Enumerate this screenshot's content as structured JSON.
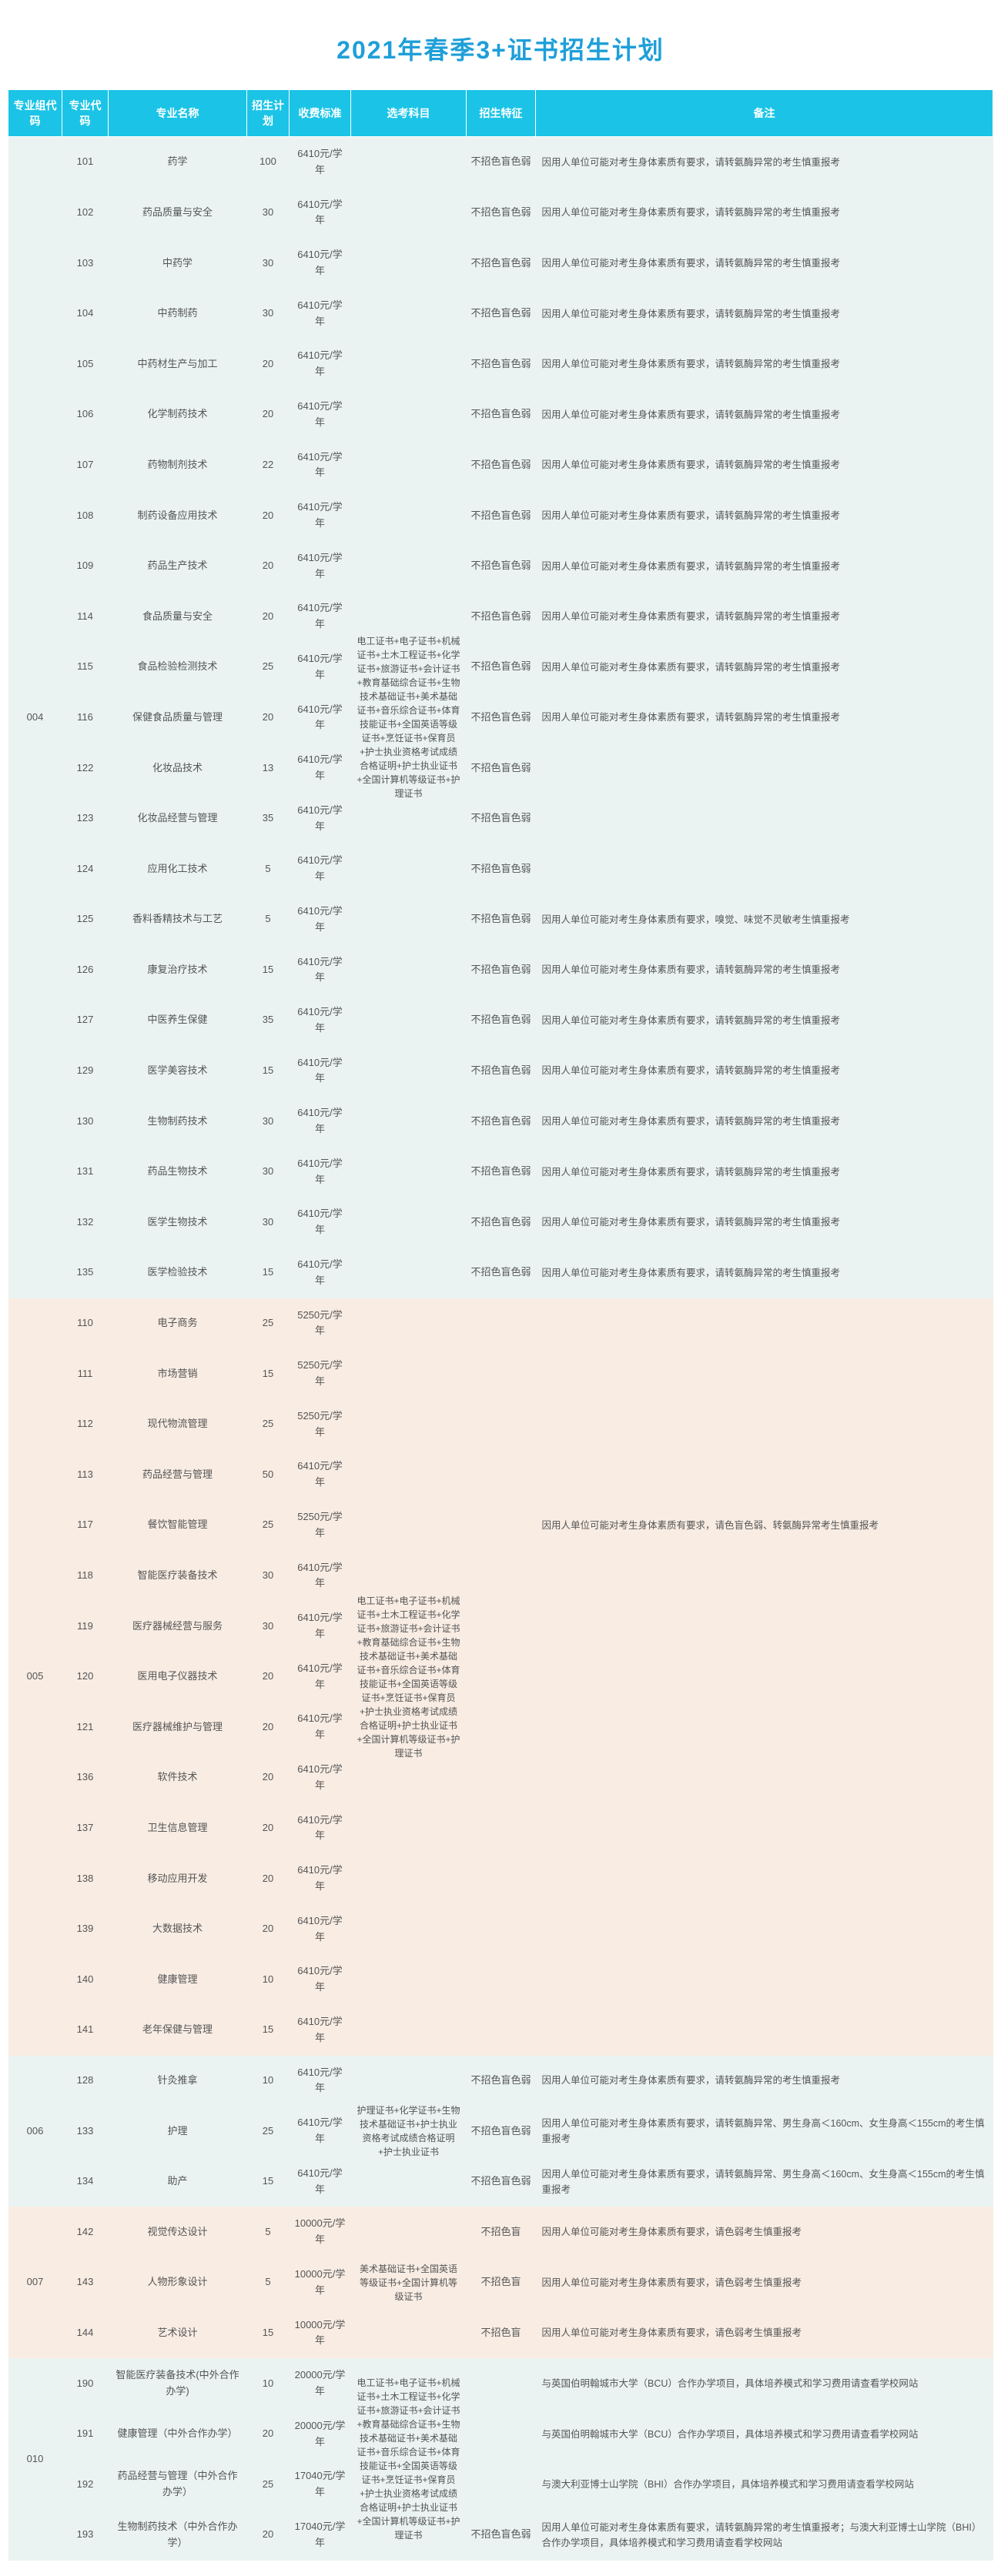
{
  "title": "2021年春季3+证书招生计划",
  "columns": [
    "专业组代码",
    "专业代码",
    "专业名称",
    "招生计划",
    "收费标准",
    "选考科目",
    "招生特征",
    "备注"
  ],
  "subject_cert_long": "电工证书+电子证书+机械证书+土木工程证书+化学证书+旅游证书+会计证书+教育基础综合证书+生物技术基础证书+美术基础证书+音乐综合证书+体育技能证书+全国英语等级证书+烹饪证书+保育员+护士执业资格考试成绩合格证明+护士执业证书+全国计算机等级证书+护理证书",
  "subject_cert_nurse": "护理证书+化学证书+生物技术基础证书+护士执业资格考试成绩合格证明+护士执业证书",
  "subject_cert_art": "美术基础证书+全国英语等级证书+全国计算机等级证书",
  "remark_std": "因用人单位可能对考生身体素质有要求，请转氨酶异常的考生慎重报考",
  "remark_smell": "因用人单位可能对考生身体素质有要求，嗅觉、味觉不灵敏考生慎重报考",
  "remark_005_117": "因用人单位可能对考生身体素质有要求，请色盲色弱、转氨酶异常考生慎重报考",
  "remark_height": "因用人单位可能对考生身体素质有要求，请转氨酶异常、男生身高＜160cm、女生身高＜155cm的考生慎重报考",
  "remark_art": "因用人单位可能对考生身体素质有要求，请色弱考生慎重报考",
  "remark_bcu": "与英国伯明翰城市大学（BCU）合作办学项目，具体培养模式和学习费用请查看学校网站",
  "remark_bhi": "与澳大利亚博士山学院（BHI）合作办学项目，具体培养模式和学习费用请查看学校网站",
  "remark_bhi2": "因用人单位可能对考生身体素质有要求，请转氨酶异常的考生慎重报考；与澳大利亚博士山学院（BHI）合作办学项目，具体培养模式和学习费用请查看学校网站",
  "feat_sm": "不招色盲色弱",
  "feat_sm2": "不招色盲",
  "groups": [
    {
      "code": "004",
      "bg": "a",
      "subject": "long",
      "rows": [
        {
          "c": "101",
          "n": "药学",
          "p": "100",
          "f": "6410元/学年",
          "t": "feat_sm",
          "r": "remark_std"
        },
        {
          "c": "102",
          "n": "药品质量与安全",
          "p": "30",
          "f": "6410元/学年",
          "t": "feat_sm",
          "r": "remark_std"
        },
        {
          "c": "103",
          "n": "中药学",
          "p": "30",
          "f": "6410元/学年",
          "t": "feat_sm",
          "r": "remark_std"
        },
        {
          "c": "104",
          "n": "中药制药",
          "p": "30",
          "f": "6410元/学年",
          "t": "feat_sm",
          "r": "remark_std"
        },
        {
          "c": "105",
          "n": "中药材生产与加工",
          "p": "20",
          "f": "6410元/学年",
          "t": "feat_sm",
          "r": "remark_std"
        },
        {
          "c": "106",
          "n": "化学制药技术",
          "p": "20",
          "f": "6410元/学年",
          "t": "feat_sm",
          "r": "remark_std"
        },
        {
          "c": "107",
          "n": "药物制剂技术",
          "p": "22",
          "f": "6410元/学年",
          "t": "feat_sm",
          "r": "remark_std"
        },
        {
          "c": "108",
          "n": "制药设备应用技术",
          "p": "20",
          "f": "6410元/学年",
          "t": "feat_sm",
          "r": "remark_std"
        },
        {
          "c": "109",
          "n": "药品生产技术",
          "p": "20",
          "f": "6410元/学年",
          "t": "feat_sm",
          "r": "remark_std"
        },
        {
          "c": "114",
          "n": "食品质量与安全",
          "p": "20",
          "f": "6410元/学年",
          "t": "feat_sm",
          "r": "remark_std"
        },
        {
          "c": "115",
          "n": "食品检验检测技术",
          "p": "25",
          "f": "6410元/学年",
          "t": "feat_sm",
          "r": "remark_std"
        },
        {
          "c": "116",
          "n": "保健食品质量与管理",
          "p": "20",
          "f": "6410元/学年",
          "t": "feat_sm",
          "r": "remark_std"
        },
        {
          "c": "122",
          "n": "化妆品技术",
          "p": "13",
          "f": "6410元/学年",
          "t": "feat_sm",
          "r": ""
        },
        {
          "c": "123",
          "n": "化妆品经营与管理",
          "p": "35",
          "f": "6410元/学年",
          "t": "feat_sm",
          "r": ""
        },
        {
          "c": "124",
          "n": "应用化工技术",
          "p": "5",
          "f": "6410元/学年",
          "t": "feat_sm",
          "r": ""
        },
        {
          "c": "125",
          "n": "香料香精技术与工艺",
          "p": "5",
          "f": "6410元/学年",
          "t": "feat_sm",
          "r": "remark_smell"
        },
        {
          "c": "126",
          "n": "康复治疗技术",
          "p": "15",
          "f": "6410元/学年",
          "t": "feat_sm",
          "r": "remark_std"
        },
        {
          "c": "127",
          "n": "中医养生保健",
          "p": "35",
          "f": "6410元/学年",
          "t": "feat_sm",
          "r": "remark_std"
        },
        {
          "c": "129",
          "n": "医学美容技术",
          "p": "15",
          "f": "6410元/学年",
          "t": "feat_sm",
          "r": "remark_std"
        },
        {
          "c": "130",
          "n": "生物制药技术",
          "p": "30",
          "f": "6410元/学年",
          "t": "feat_sm",
          "r": "remark_std"
        },
        {
          "c": "131",
          "n": "药品生物技术",
          "p": "30",
          "f": "6410元/学年",
          "t": "feat_sm",
          "r": "remark_std"
        },
        {
          "c": "132",
          "n": "医学生物技术",
          "p": "30",
          "f": "6410元/学年",
          "t": "feat_sm",
          "r": "remark_std"
        },
        {
          "c": "135",
          "n": "医学检验技术",
          "p": "15",
          "f": "6410元/学年",
          "t": "feat_sm",
          "r": "remark_std"
        }
      ]
    },
    {
      "code": "005",
      "bg": "b",
      "subject": "long",
      "rows": [
        {
          "c": "110",
          "n": "电子商务",
          "p": "25",
          "f": "5250元/学年",
          "t": "",
          "r": ""
        },
        {
          "c": "111",
          "n": "市场营销",
          "p": "15",
          "f": "5250元/学年",
          "t": "",
          "r": ""
        },
        {
          "c": "112",
          "n": "现代物流管理",
          "p": "25",
          "f": "5250元/学年",
          "t": "",
          "r": ""
        },
        {
          "c": "113",
          "n": "药品经营与管理",
          "p": "50",
          "f": "6410元/学年",
          "t": "",
          "r": ""
        },
        {
          "c": "117",
          "n": "餐饮智能管理",
          "p": "25",
          "f": "5250元/学年",
          "t": "",
          "r": "remark_005_117"
        },
        {
          "c": "118",
          "n": "智能医疗装备技术",
          "p": "30",
          "f": "6410元/学年",
          "t": "",
          "r": ""
        },
        {
          "c": "119",
          "n": "医疗器械经营与服务",
          "p": "30",
          "f": "6410元/学年",
          "t": "",
          "r": ""
        },
        {
          "c": "120",
          "n": "医用电子仪器技术",
          "p": "20",
          "f": "6410元/学年",
          "t": "",
          "r": ""
        },
        {
          "c": "121",
          "n": "医疗器械维护与管理",
          "p": "20",
          "f": "6410元/学年",
          "t": "",
          "r": ""
        },
        {
          "c": "136",
          "n": "软件技术",
          "p": "20",
          "f": "6410元/学年",
          "t": "",
          "r": ""
        },
        {
          "c": "137",
          "n": "卫生信息管理",
          "p": "20",
          "f": "6410元/学年",
          "t": "",
          "r": ""
        },
        {
          "c": "138",
          "n": "移动应用开发",
          "p": "20",
          "f": "6410元/学年",
          "t": "",
          "r": ""
        },
        {
          "c": "139",
          "n": "大数据技术",
          "p": "20",
          "f": "6410元/学年",
          "t": "",
          "r": ""
        },
        {
          "c": "140",
          "n": "健康管理",
          "p": "10",
          "f": "6410元/学年",
          "t": "",
          "r": ""
        },
        {
          "c": "141",
          "n": "老年保健与管理",
          "p": "15",
          "f": "6410元/学年",
          "t": "",
          "r": ""
        }
      ]
    },
    {
      "code": "006",
      "bg": "a",
      "subject": "nurse",
      "rows": [
        {
          "c": "128",
          "n": "针灸推拿",
          "p": "10",
          "f": "6410元/学年",
          "t": "feat_sm",
          "r": "remark_std"
        },
        {
          "c": "133",
          "n": "护理",
          "p": "25",
          "f": "6410元/学年",
          "t": "feat_sm",
          "r": "remark_height"
        },
        {
          "c": "134",
          "n": "助产",
          "p": "15",
          "f": "6410元/学年",
          "t": "feat_sm",
          "r": "remark_height"
        }
      ]
    },
    {
      "code": "007",
      "bg": "b",
      "subject": "art",
      "rows": [
        {
          "c": "142",
          "n": "视觉传达设计",
          "p": "5",
          "f": "10000元/学年",
          "t": "feat_sm2",
          "r": "remark_art"
        },
        {
          "c": "143",
          "n": "人物形象设计",
          "p": "5",
          "f": "10000元/学年",
          "t": "feat_sm2",
          "r": "remark_art"
        },
        {
          "c": "144",
          "n": "艺术设计",
          "p": "15",
          "f": "10000元/学年",
          "t": "feat_sm2",
          "r": "remark_art"
        }
      ]
    },
    {
      "code": "010",
      "bg": "a",
      "subject": "long",
      "rows": [
        {
          "c": "190",
          "n": "智能医疗装备技术(中外合作办学)",
          "p": "10",
          "f": "20000元/学年",
          "t": "",
          "r": "remark_bcu"
        },
        {
          "c": "191",
          "n": "健康管理（中外合作办学）",
          "p": "20",
          "f": "20000元/学年",
          "t": "",
          "r": "remark_bcu"
        },
        {
          "c": "192",
          "n": "药品经营与管理（中外合作办学）",
          "p": "25",
          "f": "17040元/学年",
          "t": "",
          "r": "remark_bhi"
        },
        {
          "c": "193",
          "n": "生物制药技术（中外合作办学）",
          "p": "20",
          "f": "17040元/学年",
          "t": "feat_sm",
          "r": "remark_bhi2"
        }
      ]
    }
  ]
}
